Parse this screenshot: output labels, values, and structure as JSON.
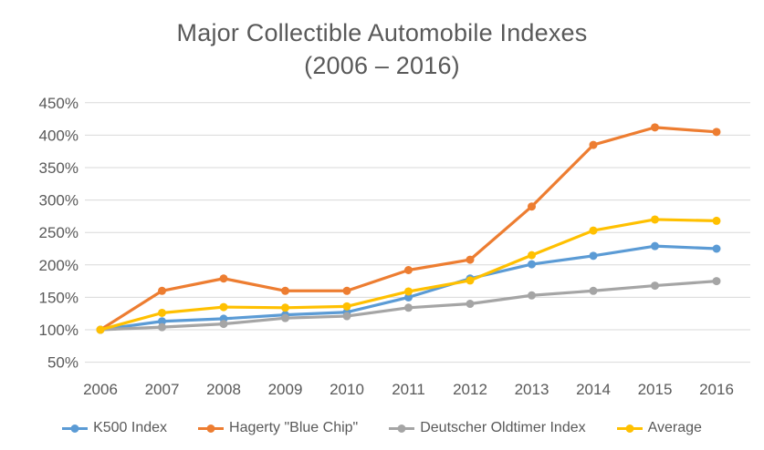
{
  "chart_data": {
    "type": "line",
    "title": "Major Collectible Automobile Indexes",
    "subtitle": "(2006 – 2016)",
    "x": [
      2006,
      2007,
      2008,
      2009,
      2010,
      2011,
      2012,
      2013,
      2014,
      2015,
      2016
    ],
    "series": [
      {
        "name": "K500 Index",
        "color": "#5B9BD5",
        "values": [
          100,
          113,
          117,
          123,
          127,
          150,
          179,
          201,
          214,
          229,
          225
        ]
      },
      {
        "name": "Hagerty \"Blue Chip\"",
        "color": "#ED7D31",
        "values": [
          100,
          160,
          179,
          160,
          160,
          192,
          208,
          290,
          385,
          412,
          405
        ]
      },
      {
        "name": "Deutscher Oldtimer Index",
        "color": "#A5A5A5",
        "values": [
          100,
          104,
          109,
          118,
          121,
          134,
          140,
          153,
          160,
          168,
          175
        ]
      },
      {
        "name": "Average",
        "color": "#FFC000",
        "values": [
          100,
          126,
          135,
          134,
          136,
          159,
          176,
          215,
          253,
          270,
          268
        ]
      }
    ],
    "yticks": [
      50,
      100,
      150,
      200,
      250,
      300,
      350,
      400,
      450
    ],
    "ytick_suffix": "%",
    "ylim": [
      50,
      450
    ],
    "grid": "horizontal-only",
    "legend_position": "bottom",
    "marker": "circle",
    "colors": {
      "title_text": "#595959",
      "axis_text": "#595959",
      "gridline": "#D9D9D9",
      "background": "#FFFFFF"
    }
  }
}
